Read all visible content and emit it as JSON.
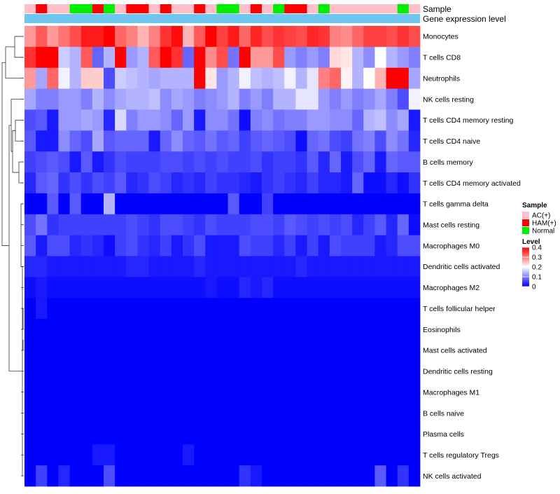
{
  "chart_data": {
    "type": "heatmap",
    "colors": {
      "low": "#0000ff",
      "mid": "#ffffff",
      "high": "#ff0000",
      "annotation_gene_expression": "#6ec6f0",
      "annotation_ac": "#ffc0cb",
      "annotation_ham": "#ff0000",
      "annotation_normal": "#00ee00"
    },
    "annotations": {
      "sample_label": "Sample",
      "gene_label": "Gene expression level",
      "sample_groups": [
        "AC",
        "HAM",
        "AC",
        "AC",
        "Normal",
        "Normal",
        "HAM",
        "Normal",
        "AC",
        "HAM",
        "HAM",
        "AC",
        "HAM",
        "AC",
        "AC",
        "HAM",
        "AC",
        "Normal",
        "Normal",
        "AC",
        "HAM",
        "AC",
        "Normal",
        "HAM",
        "HAM",
        "AC",
        "Normal",
        "AC",
        "AC",
        "AC",
        "AC",
        "AC",
        "AC",
        "Normal",
        "AC"
      ]
    },
    "rows": [
      {
        "label": "Monocytes",
        "values": [
          0.28,
          0.33,
          0.28,
          0.31,
          0.34,
          0.38,
          0.38,
          0.4,
          0.32,
          0.3,
          0.26,
          0.3,
          0.36,
          0.39,
          0.26,
          0.33,
          0.4,
          0.35,
          0.38,
          0.32,
          0.37,
          0.34,
          0.36,
          0.35,
          0.34,
          0.37,
          0.36,
          0.3,
          0.29,
          0.32,
          0.35,
          0.35,
          0.34,
          0.36,
          0.34
        ]
      },
      {
        "label": "T cells CD8",
        "values": [
          0.36,
          0.4,
          0.4,
          0.16,
          0.14,
          0.33,
          0.08,
          0.14,
          0.4,
          0.12,
          0.14,
          0.33,
          0.4,
          0.36,
          0.08,
          0.4,
          0.29,
          0.34,
          0.09,
          0.4,
          0.28,
          0.28,
          0.34,
          0.12,
          0.1,
          0.12,
          0.1,
          0.23,
          0.22,
          0.14,
          0.11,
          0.2,
          0.14,
          0.12,
          0.1
        ]
      },
      {
        "label": "Neutrophils",
        "values": [
          0.28,
          0.13,
          0.32,
          0.19,
          0.14,
          0.24,
          0.24,
          0.06,
          0.16,
          0.15,
          0.14,
          0.13,
          0.14,
          0.14,
          0.14,
          0.4,
          0.22,
          0.12,
          0.14,
          0.19,
          0.15,
          0.14,
          0.15,
          0.19,
          0.14,
          0.18,
          0.3,
          0.32,
          0.21,
          0.14,
          0.2,
          0.26,
          0.4,
          0.4,
          0.13
        ]
      },
      {
        "label": "NK cells resting",
        "values": [
          0.13,
          0.1,
          0.1,
          0.12,
          0.12,
          0.1,
          0.14,
          0.11,
          0.13,
          0.14,
          0.14,
          0.15,
          0.11,
          0.13,
          0.12,
          0.1,
          0.11,
          0.12,
          0.14,
          0.1,
          0.12,
          0.1,
          0.14,
          0.14,
          0.18,
          0.18,
          0.12,
          0.1,
          0.12,
          0.1,
          0.11,
          0.13,
          0.1,
          0.06,
          0.19
        ]
      },
      {
        "label": "T cells CD4 memory resting",
        "values": [
          0.06,
          0.07,
          0.02,
          0.12,
          0.12,
          0.13,
          0.12,
          0.03,
          0.17,
          0.1,
          0.12,
          0.12,
          0.11,
          0.08,
          0.12,
          0.02,
          0.11,
          0.11,
          0.09,
          0.01,
          0.1,
          0.11,
          0.09,
          0.1,
          0.1,
          0.12,
          0.12,
          0.11,
          0.11,
          0.08,
          0.14,
          0.15,
          0.11,
          0.13,
          0.02
        ]
      },
      {
        "label": "T cells CD4 naive",
        "values": [
          0.07,
          0.02,
          0.02,
          0.11,
          0.08,
          0.06,
          0.13,
          0.07,
          0.08,
          0.08,
          0.08,
          0.02,
          0.08,
          0.11,
          0.08,
          0.07,
          0.09,
          0.07,
          0.08,
          0.05,
          0.07,
          0.08,
          0.07,
          0.06,
          0.01,
          0.08,
          0.09,
          0.06,
          0.05,
          0.09,
          0.1,
          0.06,
          0.11,
          0.09,
          0.03
        ]
      },
      {
        "label": "B cells memory",
        "values": [
          0.05,
          0.06,
          0.07,
          0.06,
          0.02,
          0.07,
          0.02,
          0.04,
          0.06,
          0.05,
          0.05,
          0.05,
          0.06,
          0.06,
          0.05,
          0.06,
          0.05,
          0.06,
          0.05,
          0.05,
          0.06,
          0.04,
          0.05,
          0.05,
          0.04,
          0.07,
          0.03,
          0.08,
          0.02,
          0.06,
          0.08,
          0.02,
          0.08,
          0.07,
          0.07
        ]
      },
      {
        "label": "T cells CD4 memory activated",
        "values": [
          0.03,
          0.07,
          0.08,
          0.04,
          0.06,
          0.04,
          0.06,
          0.05,
          0.07,
          0.03,
          0.04,
          0.06,
          0.05,
          0.03,
          0.04,
          0.03,
          0.05,
          0.04,
          0.04,
          0.03,
          0.02,
          0.04,
          0.05,
          0.04,
          0.03,
          0.05,
          0.03,
          0.03,
          0.02,
          0.08,
          0.01,
          0.01,
          0.03,
          0.01,
          0.04
        ]
      },
      {
        "label": "T cells gamma delta",
        "values": [
          0.0,
          0.0,
          0.07,
          0.0,
          0.07,
          0.0,
          0.0,
          0.14,
          0.0,
          0.0,
          0.0,
          0.0,
          0.0,
          0.0,
          0.0,
          0.0,
          0.0,
          0.0,
          0.07,
          0.0,
          0.0,
          0.05,
          0.0,
          0.0,
          0.0,
          0.0,
          0.0,
          0.0,
          0.0,
          0.0,
          0.0,
          0.0,
          0.0,
          0.0,
          0.0
        ]
      },
      {
        "label": "Mast cells resting",
        "values": [
          0.06,
          0.09,
          0.04,
          0.05,
          0.05,
          0.05,
          0.05,
          0.05,
          0.05,
          0.06,
          0.05,
          0.04,
          0.06,
          0.06,
          0.05,
          0.04,
          0.06,
          0.05,
          0.05,
          0.05,
          0.06,
          0.06,
          0.05,
          0.07,
          0.06,
          0.05,
          0.06,
          0.05,
          0.06,
          0.03,
          0.05,
          0.07,
          0.03,
          0.08,
          0.01
        ]
      },
      {
        "label": "Macrophages M0",
        "values": [
          0.07,
          0.02,
          0.06,
          0.06,
          0.03,
          0.04,
          0.03,
          0.01,
          0.05,
          0.06,
          0.04,
          0.03,
          0.05,
          0.02,
          0.04,
          0.06,
          0.02,
          0.02,
          0.02,
          0.06,
          0.05,
          0.05,
          0.03,
          0.05,
          0.02,
          0.05,
          0.02,
          0.06,
          0.05,
          0.05,
          0.05,
          0.02,
          0.03,
          0.06,
          0.06
        ]
      },
      {
        "label": "Dendritic cells activated",
        "values": [
          0.03,
          0.03,
          0.02,
          0.02,
          0.02,
          0.02,
          0.02,
          0.02,
          0.02,
          0.03,
          0.03,
          0.02,
          0.02,
          0.02,
          0.02,
          0.03,
          0.02,
          0.02,
          0.02,
          0.02,
          0.02,
          0.02,
          0.02,
          0.02,
          0.03,
          0.02,
          0.02,
          0.02,
          0.02,
          0.02,
          0.02,
          0.02,
          0.02,
          0.02,
          0.02
        ]
      },
      {
        "label": "Macrophages M2",
        "values": [
          0.01,
          0.02,
          0.01,
          0.01,
          0.01,
          0.01,
          0.01,
          0.01,
          0.01,
          0.01,
          0.01,
          0.01,
          0.01,
          0.01,
          0.01,
          0.01,
          0.02,
          0.01,
          0.01,
          0.03,
          0.02,
          0.03,
          0.01,
          0.01,
          0.01,
          0.01,
          0.01,
          0.01,
          0.01,
          0.01,
          0.01,
          0.01,
          0.01,
          0.01,
          0.01
        ]
      },
      {
        "label": "T cells follicular helper",
        "values": [
          0.0,
          0.02,
          0.0,
          0.0,
          0.0,
          0.0,
          0.0,
          0.0,
          0.0,
          0.0,
          0.0,
          0.0,
          0.0,
          0.0,
          0.0,
          0.0,
          0.0,
          0.0,
          0.0,
          0.0,
          0.0,
          0.0,
          0.0,
          0.0,
          0.0,
          0.0,
          0.0,
          0.0,
          0.0,
          0.0,
          0.0,
          0.0,
          0.0,
          0.0,
          0.0
        ]
      },
      {
        "label": "Eosinophils",
        "values": [
          0.0,
          0.0,
          0.0,
          0.0,
          0.0,
          0.0,
          0.0,
          0.0,
          0.0,
          0.0,
          0.0,
          0.0,
          0.0,
          0.0,
          0.0,
          0.0,
          0.0,
          0.0,
          0.0,
          0.0,
          0.0,
          0.0,
          0.0,
          0.0,
          0.0,
          0.0,
          0.0,
          0.0,
          0.0,
          0.0,
          0.0,
          0.0,
          0.0,
          0.0,
          0.0
        ]
      },
      {
        "label": "Mast cells activated",
        "values": [
          0.0,
          0.0,
          0.0,
          0.0,
          0.0,
          0.0,
          0.0,
          0.0,
          0.0,
          0.0,
          0.0,
          0.0,
          0.0,
          0.0,
          0.0,
          0.0,
          0.0,
          0.0,
          0.0,
          0.0,
          0.0,
          0.0,
          0.0,
          0.0,
          0.0,
          0.0,
          0.0,
          0.0,
          0.0,
          0.0,
          0.0,
          0.0,
          0.0,
          0.0,
          0.0
        ]
      },
      {
        "label": "Dendritic cells resting",
        "values": [
          0.0,
          0.0,
          0.0,
          0.0,
          0.0,
          0.0,
          0.0,
          0.0,
          0.0,
          0.0,
          0.0,
          0.0,
          0.0,
          0.0,
          0.0,
          0.0,
          0.0,
          0.0,
          0.0,
          0.0,
          0.0,
          0.0,
          0.0,
          0.0,
          0.0,
          0.0,
          0.0,
          0.0,
          0.0,
          0.0,
          0.0,
          0.0,
          0.0,
          0.0,
          0.0
        ]
      },
      {
        "label": "Macrophages M1",
        "values": [
          0.0,
          0.0,
          0.0,
          0.0,
          0.0,
          0.0,
          0.0,
          0.0,
          0.0,
          0.0,
          0.0,
          0.0,
          0.0,
          0.0,
          0.0,
          0.0,
          0.0,
          0.0,
          0.0,
          0.0,
          0.0,
          0.0,
          0.0,
          0.0,
          0.0,
          0.0,
          0.0,
          0.0,
          0.0,
          0.0,
          0.0,
          0.0,
          0.0,
          0.0,
          0.0
        ]
      },
      {
        "label": "B cells naive",
        "values": [
          0.0,
          0.0,
          0.0,
          0.0,
          0.0,
          0.0,
          0.0,
          0.0,
          0.0,
          0.0,
          0.0,
          0.0,
          0.0,
          0.0,
          0.0,
          0.0,
          0.0,
          0.0,
          0.0,
          0.0,
          0.0,
          0.0,
          0.0,
          0.0,
          0.0,
          0.0,
          0.0,
          0.0,
          0.0,
          0.0,
          0.0,
          0.0,
          0.0,
          0.0,
          0.0
        ]
      },
      {
        "label": "Plasma cells",
        "values": [
          0.0,
          0.0,
          0.0,
          0.0,
          0.0,
          0.0,
          0.0,
          0.0,
          0.0,
          0.0,
          0.0,
          0.0,
          0.0,
          0.0,
          0.0,
          0.0,
          0.0,
          0.0,
          0.0,
          0.0,
          0.0,
          0.0,
          0.0,
          0.0,
          0.0,
          0.0,
          0.0,
          0.0,
          0.0,
          0.0,
          0.0,
          0.0,
          0.0,
          0.0,
          0.0
        ]
      },
      {
        "label": "T cells regulatory  Tregs",
        "values": [
          0.0,
          0.0,
          0.0,
          0.0,
          0.0,
          0.0,
          0.02,
          0.02,
          0.0,
          0.0,
          0.0,
          0.0,
          0.0,
          0.0,
          0.02,
          0.0,
          0.0,
          0.0,
          0.0,
          0.0,
          0.0,
          0.0,
          0.0,
          0.0,
          0.0,
          0.0,
          0.0,
          0.0,
          0.0,
          0.0,
          0.0,
          0.0,
          0.0,
          0.0,
          0.0
        ]
      },
      {
        "label": "NK cells activated",
        "values": [
          0.0,
          0.05,
          0.0,
          0.03,
          0.0,
          0.0,
          0.0,
          0.06,
          0.0,
          0.0,
          0.0,
          0.0,
          0.0,
          0.0,
          0.0,
          0.0,
          0.0,
          0.0,
          0.0,
          0.04,
          0.02,
          0.0,
          0.0,
          0.0,
          0.0,
          0.0,
          0.0,
          0.0,
          0.0,
          0.0,
          0.0,
          0.07,
          0.0,
          0.04,
          0.0
        ]
      }
    ],
    "legend": {
      "sample_title": "Sample",
      "sample_items": [
        {
          "key": "AC",
          "label": "AC(+)",
          "color": "#ffc0cb"
        },
        {
          "key": "HAM",
          "label": "HAM(+)",
          "color": "#ff0000"
        },
        {
          "key": "Normal",
          "label": "Normal",
          "color": "#00ee00"
        }
      ],
      "level_title": "Level",
      "level_ticks": [
        0.4,
        0.3,
        0.2,
        0.1,
        0
      ],
      "level_range": [
        0,
        0.4
      ]
    }
  }
}
